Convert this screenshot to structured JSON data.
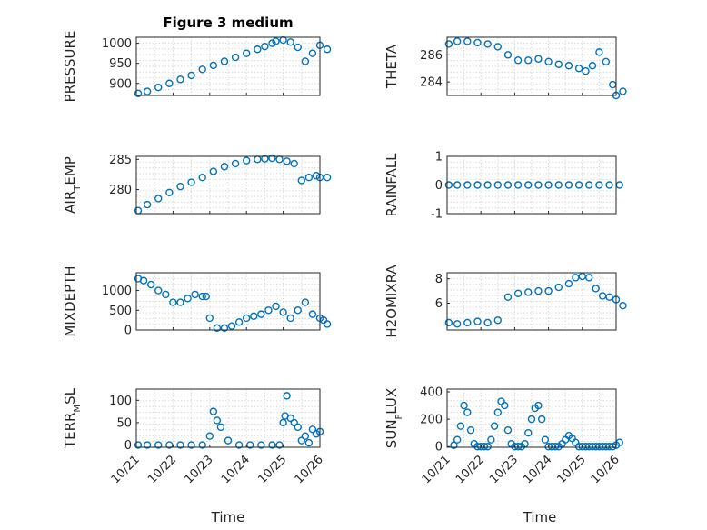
{
  "title": "Figure 3 medium",
  "colors": {
    "marker": "#0072BD",
    "axis": "#262626",
    "grid": "#d9d9d9"
  },
  "xticks": [
    "10/21",
    "10/22",
    "10/23",
    "10/24",
    "10/25",
    "10/26"
  ],
  "xlabel": "Time",
  "chart_data": [
    {
      "type": "scatter",
      "ylabel": "PRESSURE",
      "ylim": [
        870,
        1015
      ],
      "yticks": [
        900,
        950,
        1000
      ],
      "xlim": [
        0,
        5
      ],
      "grid": true,
      "x": [
        0.05,
        0.3,
        0.6,
        0.9,
        1.2,
        1.5,
        1.8,
        2.1,
        2.4,
        2.7,
        3.0,
        3.3,
        3.5,
        3.7,
        3.8,
        4.0,
        4.2,
        4.4,
        4.6,
        4.8,
        5.0,
        5.2
      ],
      "y": [
        875,
        880,
        890,
        900,
        910,
        920,
        935,
        945,
        955,
        965,
        975,
        985,
        992,
        1000,
        1005,
        1008,
        1003,
        990,
        955,
        975,
        995,
        985
      ]
    },
    {
      "type": "scatter",
      "ylabel": "THETA",
      "ylim": [
        283,
        287.3
      ],
      "yticks": [
        284,
        286
      ],
      "xlim": [
        0,
        5
      ],
      "grid": true,
      "x": [
        0.05,
        0.3,
        0.6,
        0.9,
        1.2,
        1.5,
        1.8,
        2.1,
        2.4,
        2.7,
        3.0,
        3.3,
        3.6,
        3.9,
        4.1,
        4.3,
        4.5,
        4.7,
        4.9,
        5.0,
        5.2
      ],
      "y": [
        286.8,
        287.0,
        287.0,
        286.9,
        286.8,
        286.6,
        286.0,
        285.6,
        285.6,
        285.7,
        285.5,
        285.3,
        285.2,
        285.0,
        284.8,
        285.2,
        286.2,
        285.5,
        283.8,
        283.0,
        283.3
      ]
    },
    {
      "type": "scatter",
      "ylabel": "AIR_TEMP",
      "ylim": [
        276,
        285.5
      ],
      "yticks": [
        280,
        285
      ],
      "xlim": [
        0,
        5
      ],
      "grid": true,
      "x": [
        0.05,
        0.3,
        0.6,
        0.9,
        1.2,
        1.5,
        1.8,
        2.1,
        2.4,
        2.7,
        3.0,
        3.3,
        3.5,
        3.7,
        3.9,
        4.1,
        4.3,
        4.5,
        4.7,
        4.9,
        5.0,
        5.2
      ],
      "y": [
        276.5,
        277.5,
        278.5,
        279.5,
        280.5,
        281.2,
        282.0,
        283.0,
        283.8,
        284.3,
        284.8,
        285.0,
        285.1,
        285.2,
        285.0,
        284.7,
        284.3,
        281.5,
        282.0,
        282.3,
        282.0,
        282.0
      ]
    },
    {
      "type": "scatter",
      "ylabel": "RAINFALL",
      "ylim": [
        -1,
        1
      ],
      "yticks": [
        -1,
        0,
        1
      ],
      "xlim": [
        0,
        5
      ],
      "grid": true,
      "x": [
        0.05,
        0.3,
        0.6,
        0.9,
        1.2,
        1.5,
        1.8,
        2.1,
        2.4,
        2.7,
        3.0,
        3.3,
        3.6,
        3.9,
        4.2,
        4.5,
        4.8,
        5.1
      ],
      "y": [
        0,
        0,
        0,
        0,
        0,
        0,
        0,
        0,
        0,
        0,
        0,
        0,
        0,
        0,
        0,
        0,
        0,
        0
      ]
    },
    {
      "type": "scatter",
      "ylabel": "MIXDEPTH",
      "ylim": [
        0,
        1450
      ],
      "yticks": [
        0,
        500,
        1000
      ],
      "xlim": [
        0,
        5
      ],
      "grid": true,
      "x": [
        0.05,
        0.2,
        0.4,
        0.6,
        0.8,
        1.0,
        1.2,
        1.4,
        1.6,
        1.8,
        1.9,
        2.0,
        2.2,
        2.4,
        2.6,
        2.8,
        3.0,
        3.2,
        3.4,
        3.6,
        3.8,
        4.0,
        4.2,
        4.4,
        4.6,
        4.8,
        5.0,
        5.1,
        5.2
      ],
      "y": [
        1300,
        1250,
        1150,
        1000,
        900,
        700,
        700,
        800,
        900,
        850,
        850,
        300,
        50,
        50,
        100,
        200,
        300,
        350,
        400,
        500,
        600,
        450,
        300,
        500,
        700,
        400,
        300,
        250,
        150
      ]
    },
    {
      "type": "scatter",
      "ylabel": "H2OMIXRA",
      "ylim": [
        3.8,
        8.5
      ],
      "yticks": [
        6,
        8
      ],
      "xlim": [
        0,
        5
      ],
      "grid": true,
      "x": [
        0.05,
        0.3,
        0.6,
        0.9,
        1.2,
        1.5,
        1.8,
        2.1,
        2.4,
        2.7,
        3.0,
        3.3,
        3.6,
        3.8,
        4.0,
        4.2,
        4.4,
        4.6,
        4.8,
        5.0,
        5.2
      ],
      "y": [
        4.4,
        4.3,
        4.4,
        4.5,
        4.4,
        4.6,
        6.5,
        6.8,
        6.9,
        7.0,
        7.0,
        7.3,
        7.6,
        8.1,
        8.2,
        8.1,
        7.2,
        6.6,
        6.5,
        6.3,
        5.8
      ]
    },
    {
      "type": "scatter",
      "ylabel": "TERR_MSL",
      "ylim": [
        -5,
        125
      ],
      "yticks": [
        0,
        50,
        100
      ],
      "xlim": [
        0,
        5
      ],
      "grid": true,
      "x": [
        0.05,
        0.3,
        0.6,
        0.9,
        1.2,
        1.5,
        1.8,
        2.0,
        2.1,
        2.2,
        2.3,
        2.5,
        2.8,
        3.1,
        3.4,
        3.7,
        3.9,
        4.0,
        4.05,
        4.1,
        4.2,
        4.3,
        4.4,
        4.5,
        4.6,
        4.7,
        4.8,
        4.9,
        5.0
      ],
      "y": [
        0,
        0,
        0,
        0,
        0,
        0,
        0,
        20,
        75,
        55,
        40,
        10,
        0,
        0,
        0,
        0,
        0,
        50,
        65,
        110,
        60,
        50,
        40,
        10,
        20,
        5,
        35,
        25,
        30
      ]
    },
    {
      "type": "scatter",
      "ylabel": "SUN_FLUX",
      "ylim": [
        -5,
        420
      ],
      "yticks": [
        0,
        200,
        400
      ],
      "xlim": [
        0,
        5
      ],
      "grid": true,
      "x": [
        0.2,
        0.3,
        0.4,
        0.5,
        0.6,
        0.7,
        0.8,
        0.9,
        1.0,
        1.1,
        1.2,
        1.3,
        1.4,
        1.5,
        1.6,
        1.7,
        1.8,
        1.9,
        2.0,
        2.1,
        2.2,
        2.3,
        2.4,
        2.5,
        2.6,
        2.7,
        2.8,
        2.9,
        3.0,
        3.1,
        3.2,
        3.3,
        3.4,
        3.5,
        3.6,
        3.7,
        3.8,
        3.9,
        4.0,
        4.1,
        4.2,
        4.3,
        4.4,
        4.5,
        4.6,
        4.7,
        4.8,
        4.9,
        5.0,
        5.1
      ],
      "y": [
        10,
        50,
        150,
        300,
        250,
        120,
        20,
        0,
        0,
        0,
        0,
        50,
        150,
        250,
        330,
        300,
        120,
        20,
        0,
        0,
        0,
        20,
        100,
        200,
        280,
        300,
        200,
        50,
        0,
        0,
        0,
        0,
        20,
        50,
        80,
        60,
        30,
        0,
        0,
        0,
        0,
        0,
        0,
        0,
        0,
        0,
        0,
        0,
        10,
        30
      ]
    }
  ]
}
